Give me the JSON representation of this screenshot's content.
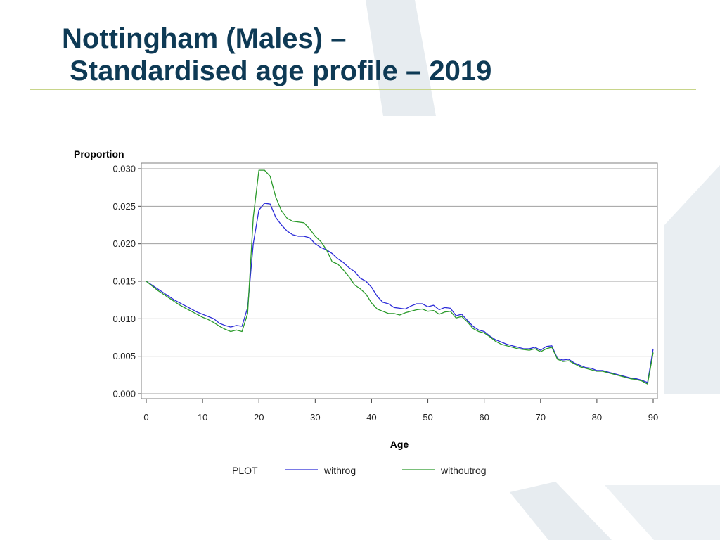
{
  "slide": {
    "title_line1": "Nottingham (Males) –",
    "title_line2": " Standardised age profile – 2019"
  },
  "colors": {
    "title": "#0e3a55",
    "rule": "#c8d58a",
    "withrog": "#2b2bd8",
    "withoutrog": "#2a9a2a",
    "grid": "#a0a0a0"
  },
  "chart_data": {
    "type": "line",
    "ylabel": "Proportion",
    "xlabel": "Age",
    "xlim": [
      0,
      90
    ],
    "ylim": [
      0,
      0.03
    ],
    "x_ticks": [
      "0",
      "10",
      "20",
      "30",
      "40",
      "50",
      "60",
      "70",
      "80",
      "90"
    ],
    "y_ticks": [
      "0.000",
      "0.005",
      "0.010",
      "0.015",
      "0.020",
      "0.025",
      "0.030"
    ],
    "grid": "horizontal",
    "legend": {
      "title": "PLOT",
      "placement": "bottom"
    },
    "x": [
      0,
      1,
      2,
      3,
      4,
      5,
      6,
      7,
      8,
      9,
      10,
      11,
      12,
      13,
      14,
      15,
      16,
      17,
      18,
      19,
      20,
      21,
      22,
      23,
      24,
      25,
      26,
      27,
      28,
      29,
      30,
      31,
      32,
      33,
      34,
      35,
      36,
      37,
      38,
      39,
      40,
      41,
      42,
      43,
      44,
      45,
      46,
      47,
      48,
      49,
      50,
      51,
      52,
      53,
      54,
      55,
      56,
      57,
      58,
      59,
      60,
      61,
      62,
      63,
      64,
      65,
      66,
      67,
      68,
      69,
      70,
      71,
      72,
      73,
      74,
      75,
      76,
      77,
      78,
      79,
      80,
      81,
      82,
      83,
      84,
      85,
      86,
      87,
      88,
      89,
      90
    ],
    "series": [
      {
        "name": "withrog",
        "values": [
          0.015,
          0.0145,
          0.014,
          0.0135,
          0.013,
          0.0125,
          0.0121,
          0.0117,
          0.0113,
          0.0109,
          0.0106,
          0.0103,
          0.01,
          0.0094,
          0.0091,
          0.0089,
          0.0091,
          0.009,
          0.0115,
          0.02,
          0.0245,
          0.0254,
          0.0253,
          0.0235,
          0.0225,
          0.0217,
          0.0212,
          0.021,
          0.021,
          0.0208,
          0.02,
          0.0195,
          0.0192,
          0.0187,
          0.018,
          0.0175,
          0.0168,
          0.0163,
          0.0154,
          0.015,
          0.0142,
          0.013,
          0.0122,
          0.012,
          0.0115,
          0.0114,
          0.0113,
          0.0117,
          0.012,
          0.012,
          0.0116,
          0.0118,
          0.0112,
          0.0115,
          0.0114,
          0.0104,
          0.0106,
          0.0098,
          0.009,
          0.0085,
          0.0083,
          0.0077,
          0.0072,
          0.0069,
          0.0066,
          0.0064,
          0.0062,
          0.006,
          0.006,
          0.0062,
          0.0058,
          0.0063,
          0.0064,
          0.0047,
          0.0045,
          0.0046,
          0.0041,
          0.0038,
          0.0035,
          0.0034,
          0.0031,
          0.0031,
          0.0029,
          0.0027,
          0.0025,
          0.0023,
          0.0021,
          0.002,
          0.0018,
          0.0015,
          0.006
        ]
      },
      {
        "name": "withoutrog",
        "values": [
          0.015,
          0.0144,
          0.0138,
          0.0133,
          0.0128,
          0.0123,
          0.0118,
          0.0114,
          0.011,
          0.0106,
          0.0102,
          0.0099,
          0.0095,
          0.009,
          0.0086,
          0.0083,
          0.0085,
          0.0083,
          0.0107,
          0.0235,
          0.0298,
          0.0298,
          0.029,
          0.0262,
          0.0244,
          0.0234,
          0.023,
          0.0229,
          0.0228,
          0.022,
          0.021,
          0.0203,
          0.0192,
          0.0176,
          0.0173,
          0.0165,
          0.0156,
          0.0145,
          0.014,
          0.0133,
          0.0121,
          0.0113,
          0.011,
          0.0107,
          0.0107,
          0.0105,
          0.0108,
          0.011,
          0.0112,
          0.0113,
          0.011,
          0.0111,
          0.0106,
          0.0109,
          0.011,
          0.0101,
          0.0103,
          0.0096,
          0.0087,
          0.0083,
          0.0081,
          0.0076,
          0.007,
          0.0066,
          0.0064,
          0.0062,
          0.006,
          0.0059,
          0.0058,
          0.006,
          0.0056,
          0.006,
          0.0062,
          0.0046,
          0.0043,
          0.0044,
          0.004,
          0.0036,
          0.0034,
          0.0032,
          0.003,
          0.003,
          0.0028,
          0.0026,
          0.0024,
          0.0022,
          0.002,
          0.0019,
          0.0017,
          0.0013,
          0.0055
        ]
      }
    ]
  }
}
